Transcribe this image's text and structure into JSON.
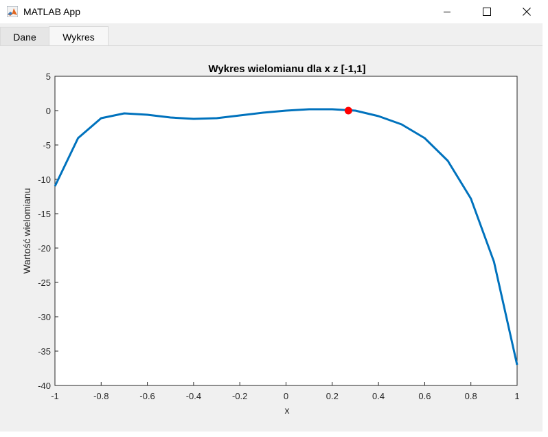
{
  "window": {
    "title": "MATLAB App",
    "icon": "matlab-icon"
  },
  "tabs": [
    {
      "label": "Dane",
      "active": false
    },
    {
      "label": "Wykres",
      "active": true
    }
  ],
  "chart_data": {
    "type": "line",
    "title": "Wykres wielomianu dla x z [-1,1]",
    "xlabel": "x",
    "ylabel": "Wartość wielomianu",
    "xlim": [
      -1,
      1
    ],
    "ylim": [
      -40,
      5
    ],
    "xticks": [
      "-1",
      "-0.8",
      "-0.6",
      "-0.4",
      "-0.2",
      "0",
      "0.2",
      "0.4",
      "0.6",
      "0.8",
      "1"
    ],
    "yticks": [
      "5",
      "0",
      "-5",
      "-10",
      "-15",
      "-20",
      "-25",
      "-30",
      "-35",
      "-40"
    ],
    "grid": true,
    "line_color": "#0072bd",
    "marker_color": "#ff0000",
    "series": [
      {
        "x": [
          -1,
          -0.9,
          -0.8,
          -0.7,
          -0.6,
          -0.5,
          -0.4,
          -0.3,
          -0.2,
          -0.1,
          0,
          0.1,
          0.2,
          0.3,
          0.4,
          0.5,
          0.6,
          0.7,
          0.8,
          0.9,
          1
        ],
        "y": [
          -11,
          -4,
          -1.1,
          -0.4,
          -0.6,
          -1.0,
          -1.2,
          -1.1,
          -0.7,
          -0.3,
          0,
          0.2,
          0.2,
          0,
          -0.8,
          -2.0,
          -4.0,
          -7.3,
          -12.8,
          -22.0,
          -37.0
        ]
      }
    ],
    "points": [
      {
        "x": 0.27,
        "y": 0
      }
    ]
  }
}
